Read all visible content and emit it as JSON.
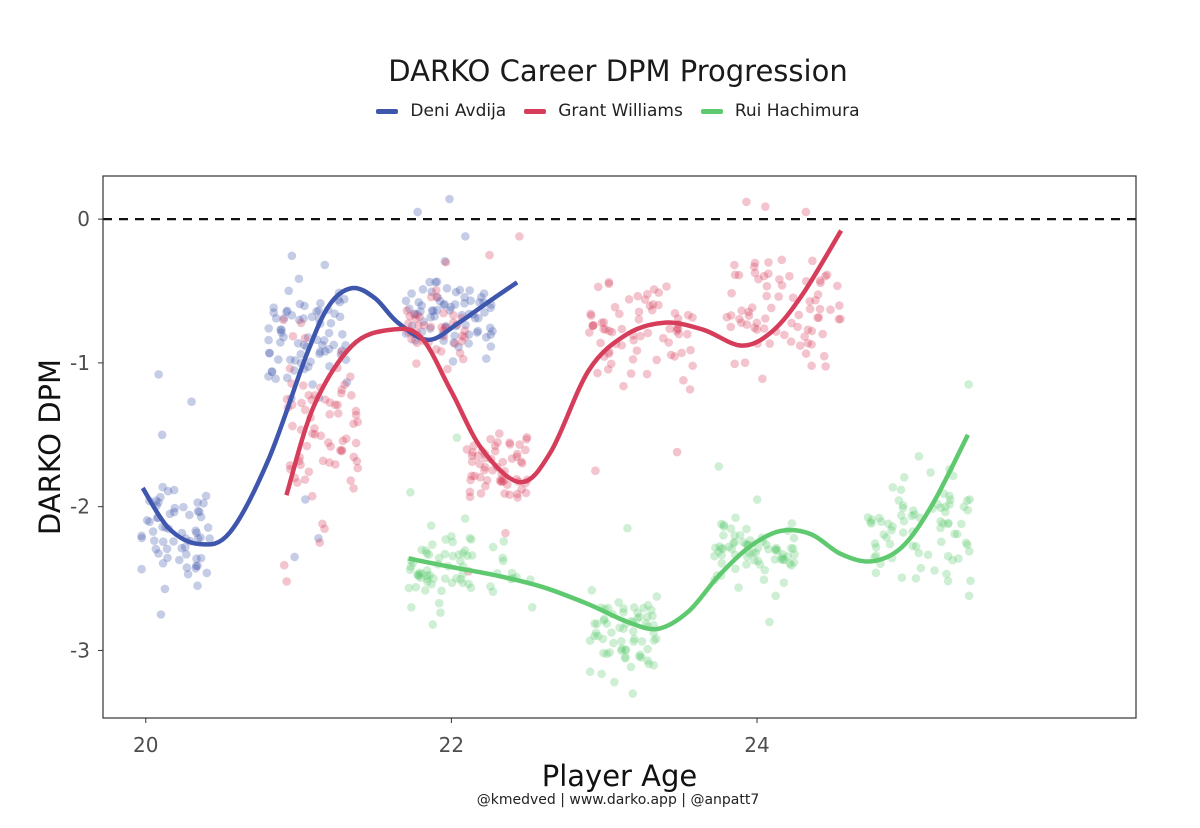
{
  "chart_data": {
    "type": "scatter",
    "title": "DARKO Career DPM Progression",
    "xlabel": "Player Age",
    "ylabel": "DARKO DPM",
    "caption": "@kmedved | www.darko.app | @anpatt7",
    "xlim": [
      19.72,
      26.48
    ],
    "ylim": [
      -3.47,
      0.3
    ],
    "x_ticks": [
      20,
      22,
      24
    ],
    "x_tick_labels": [
      "20",
      "22",
      "24"
    ],
    "y_ticks": [
      0,
      -1,
      -2,
      -3
    ],
    "y_tick_labels": [
      "0",
      "-1",
      "-2",
      "-3"
    ],
    "reference_line": {
      "y": 0,
      "style": "dashed"
    },
    "legend_position": "top",
    "grid": false,
    "series": [
      {
        "name": "Deni Avdija",
        "color": "#3f56ad",
        "smooth_x": [
          19.98,
          20.15,
          20.35,
          20.55,
          20.8,
          21.05,
          21.2,
          21.35,
          21.5,
          21.65,
          21.85,
          22.05,
          22.25,
          22.43
        ],
        "smooth_y": [
          -1.87,
          -2.15,
          -2.26,
          -2.18,
          -1.68,
          -0.95,
          -0.6,
          -0.48,
          -0.55,
          -0.72,
          -0.84,
          -0.72,
          -0.57,
          -0.44
        ],
        "point_groups": [
          {
            "x_range": [
              19.97,
              20.42
            ],
            "center": -2.15,
            "spread": 0.35,
            "count": 60,
            "outliers": [
              -1.08,
              -1.27,
              -1.5,
              -2.55,
              -2.75
            ]
          },
          {
            "x_range": [
              20.78,
              21.32
            ],
            "center": -0.85,
            "spread": 0.45,
            "count": 75,
            "outliers": [
              -2.35,
              -2.22,
              -1.95
            ]
          },
          {
            "x_range": [
              21.7,
              22.28
            ],
            "center": -0.65,
            "spread": 0.28,
            "count": 70,
            "outliers": [
              0.14,
              0.05,
              -0.12,
              -0.97
            ]
          }
        ]
      },
      {
        "name": "Grant Williams",
        "color": "#d63d5a",
        "smooth_x": [
          20.92,
          21.1,
          21.35,
          21.6,
          21.8,
          22.0,
          22.2,
          22.45,
          22.65,
          22.9,
          23.15,
          23.4,
          23.65,
          23.9,
          24.1,
          24.3,
          24.55
        ],
        "smooth_y": [
          -1.92,
          -1.3,
          -0.88,
          -0.77,
          -0.82,
          -1.2,
          -1.6,
          -1.83,
          -1.62,
          -1.05,
          -0.8,
          -0.72,
          -0.77,
          -0.88,
          -0.78,
          -0.52,
          -0.08
        ],
        "point_groups": [
          {
            "x_range": [
              20.9,
              21.42
            ],
            "center": -1.45,
            "spread": 0.55,
            "count": 70,
            "outliers": [
              -2.52,
              -2.25
            ]
          },
          {
            "x_range": [
              21.7,
              22.1
            ],
            "center": -0.75,
            "spread": 0.25,
            "count": 40,
            "outliers": [
              -0.3
            ]
          },
          {
            "x_range": [
              22.1,
              22.52
            ],
            "center": -1.75,
            "spread": 0.3,
            "count": 60,
            "outliers": [
              -0.12,
              -0.25,
              -2.45
            ]
          },
          {
            "x_range": [
              22.9,
              23.6
            ],
            "center": -0.8,
            "spread": 0.3,
            "count": 70,
            "outliers": [
              -1.75,
              -1.62
            ]
          },
          {
            "x_range": [
              23.8,
              24.55
            ],
            "center": -0.65,
            "spread": 0.45,
            "count": 75,
            "outliers": [
              0.12,
              0.05,
              -0.88
            ]
          }
        ]
      },
      {
        "name": "Rui Hachimura",
        "color": "#5ec96f",
        "smooth_x": [
          21.72,
          22.0,
          22.3,
          22.6,
          22.9,
          23.15,
          23.35,
          23.55,
          23.75,
          23.95,
          24.15,
          24.35,
          24.55,
          24.75,
          24.95,
          25.15,
          25.38
        ],
        "smooth_y": [
          -2.36,
          -2.42,
          -2.48,
          -2.56,
          -2.68,
          -2.8,
          -2.85,
          -2.73,
          -2.48,
          -2.28,
          -2.17,
          -2.19,
          -2.33,
          -2.38,
          -2.28,
          -1.98,
          -1.5
        ],
        "point_groups": [
          {
            "x_range": [
              21.72,
              22.15
            ],
            "center": -2.45,
            "spread": 0.3,
            "count": 55,
            "outliers": [
              -1.52,
              -1.9,
              -2.82,
              -2.7
            ]
          },
          {
            "x_range": [
              22.25,
              22.55
            ],
            "center": -2.4,
            "spread": 0.2,
            "count": 12,
            "outliers": [
              -2.7
            ]
          },
          {
            "x_range": [
              22.9,
              23.35
            ],
            "center": -2.85,
            "spread": 0.28,
            "count": 65,
            "outliers": [
              -2.15,
              -3.3,
              -3.22
            ]
          },
          {
            "x_range": [
              23.72,
              24.25
            ],
            "center": -2.3,
            "spread": 0.25,
            "count": 70,
            "outliers": [
              -1.72,
              -2.62
            ]
          },
          {
            "x_range": [
              24.72,
              25.4
            ],
            "center": -2.15,
            "spread": 0.35,
            "count": 75,
            "outliers": [
              -1.15,
              -1.65,
              -2.62
            ]
          }
        ]
      }
    ]
  }
}
